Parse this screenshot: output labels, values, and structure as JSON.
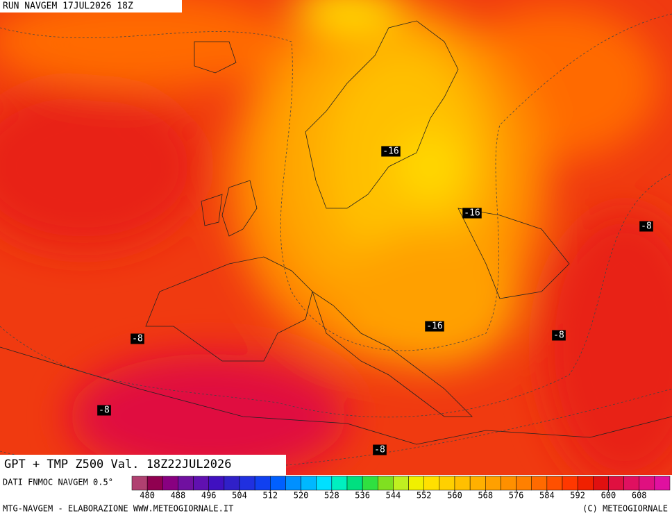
{
  "header": "RUN NAVGEM 17JUL2026 18Z",
  "contour_labels": [
    -16,
    -16,
    -16,
    -8,
    -8,
    -8,
    -8,
    -8
  ],
  "title": "GPT + TMP Z500 Val. 18Z22JUL2026",
  "colorbar": {
    "label": "DATI FNMOC NAVGEM 0.5°",
    "lim": [
      476,
      616
    ],
    "ticks": [
      480,
      488,
      496,
      504,
      512,
      520,
      528,
      536,
      544,
      552,
      560,
      568,
      576,
      584,
      592,
      600,
      608
    ],
    "colors": [
      "#b04070",
      "#900050",
      "#880080",
      "#7010a0",
      "#6010b0",
      "#4010c0",
      "#3020c8",
      "#2030e0",
      "#1040f0",
      "#0060ff",
      "#0090ff",
      "#00b8ff",
      "#00e0ff",
      "#00f0c0",
      "#00e080",
      "#30e040",
      "#80e020",
      "#c0f020",
      "#f0f000",
      "#ffe000",
      "#ffd000",
      "#ffc000",
      "#ffb000",
      "#ffa000",
      "#ff9000",
      "#ff8000",
      "#ff6a00",
      "#ff5000",
      "#ff3800",
      "#f02000",
      "#e01010",
      "#e01040",
      "#e01060",
      "#e01080",
      "#e010a0"
    ]
  },
  "footer_left": "MTG-NAVGEM - ELABORAZIONE WWW.METEOGIORNALE.IT",
  "footer_right": "(C) METEOGIORNALE"
}
